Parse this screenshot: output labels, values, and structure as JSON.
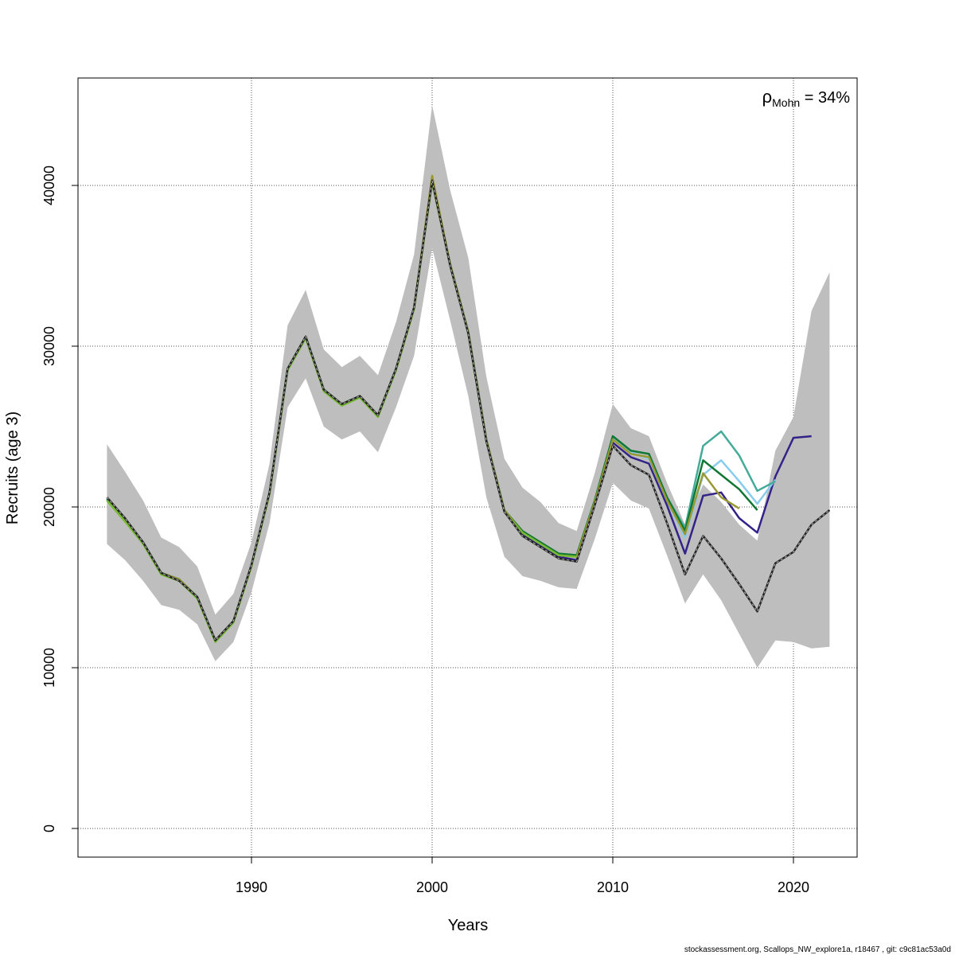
{
  "chart_data": {
    "type": "line",
    "xlabel": "Years",
    "ylabel": "Recruits (age 3)",
    "xlim": [
      1982,
      2022
    ],
    "ylim": [
      0,
      45000
    ],
    "x_ticks": [
      1990,
      2000,
      2010,
      2020
    ],
    "y_ticks": [
      0,
      10000,
      20000,
      30000,
      40000
    ],
    "grid": true,
    "annotation": {
      "symbol": "ρ",
      "subscript": "Mohn",
      "text": " = 34%"
    },
    "confidence_band": {
      "x": [
        1982,
        1983,
        1984,
        1985,
        1986,
        1987,
        1988,
        1989,
        1990,
        1991,
        1992,
        1993,
        1994,
        1995,
        1996,
        1997,
        1998,
        1999,
        2000,
        2001,
        2002,
        2003,
        2004,
        2005,
        2006,
        2007,
        2008,
        2009,
        2010,
        2011,
        2012,
        2013,
        2014,
        2015,
        2016,
        2017,
        2018,
        2019,
        2020,
        2021,
        2022
      ],
      "lower": [
        17700,
        16700,
        15400,
        13900,
        13600,
        12700,
        10400,
        11600,
        14700,
        19000,
        26200,
        28000,
        25000,
        24200,
        24700,
        23400,
        26200,
        29400,
        36100,
        31600,
        26900,
        20600,
        16900,
        15700,
        15400,
        15000,
        14900,
        18000,
        21500,
        20400,
        19900,
        17000,
        14000,
        15800,
        14200,
        12100,
        10000,
        11700,
        11600,
        11200,
        11300
      ],
      "upper": [
        23900,
        22200,
        20400,
        18100,
        17500,
        16300,
        13300,
        14600,
        17800,
        22700,
        31300,
        33500,
        29800,
        28700,
        29400,
        28200,
        31500,
        35700,
        45000,
        39700,
        35500,
        28100,
        23000,
        21200,
        20300,
        19000,
        18500,
        22100,
        26400,
        24900,
        24400,
        21500,
        18900,
        21400,
        20300,
        18900,
        17900,
        23500,
        25600,
        32200,
        34600
      ],
      "color": "#bebebe"
    },
    "series": [
      {
        "values": [
          20600,
          19300,
          17800,
          15900,
          15400,
          14400,
          11700,
          12900,
          16400,
          20900,
          28600,
          30600,
          27300,
          26400,
          26900,
          25700,
          28600,
          32400,
          40300,
          35000,
          30800,
          24100,
          19700,
          18200,
          17500,
          16800,
          16600,
          20100,
          23800,
          22600,
          22000,
          19000,
          15800,
          18200,
          16800,
          15200,
          13500,
          16500,
          17200,
          18900,
          19800
        ],
        "x_start": 1982,
        "color": "#222222",
        "dash": true
      },
      {
        "values": [
          20500,
          19200,
          17800,
          15900,
          15500,
          14400,
          11700,
          12900,
          16400,
          20900,
          28600,
          30600,
          27300,
          26400,
          26900,
          25700,
          28600,
          32400,
          40300,
          35100,
          30800,
          24100,
          19700,
          18300,
          17600,
          16900,
          16700,
          20200,
          24000,
          23100,
          22700,
          20100,
          17100,
          20700,
          20900,
          19300,
          18400,
          21900,
          24300,
          24400
        ],
        "x_start": 1982,
        "color": "#332288"
      },
      {
        "values": [
          20500,
          19200,
          17800,
          15900,
          15500,
          14400,
          11700,
          12900,
          16400,
          20900,
          28600,
          30600,
          27300,
          26400,
          26900,
          25700,
          28600,
          32400,
          40300,
          35100,
          30900,
          24200,
          19800,
          18400,
          17700,
          17000,
          16900,
          20400,
          24300,
          23400,
          23000,
          20400,
          18100,
          22000,
          22900,
          21600,
          20200,
          21700
        ],
        "x_start": 1982,
        "color": "#88ccee"
      },
      {
        "values": [
          20500,
          19200,
          17800,
          15900,
          15500,
          14400,
          11700,
          12900,
          16400,
          20900,
          28600,
          30600,
          27300,
          26400,
          26900,
          25700,
          28600,
          32400,
          40300,
          35100,
          30900,
          24200,
          19800,
          18400,
          17800,
          17100,
          17000,
          20400,
          24400,
          23500,
          23300,
          20600,
          18700,
          23800,
          24700,
          23200,
          21000,
          21600
        ],
        "x_start": 1982,
        "color": "#44aa99"
      },
      {
        "values": [
          20500,
          19200,
          17800,
          15900,
          15500,
          14400,
          11700,
          12900,
          16400,
          20900,
          28600,
          30600,
          27300,
          26400,
          26900,
          25700,
          28600,
          32400,
          40300,
          35100,
          30900,
          24200,
          19800,
          18500,
          17800,
          17100,
          17000,
          20400,
          24400,
          23500,
          23300,
          20600,
          18500,
          22900,
          22000,
          21100,
          19800
        ],
        "x_start": 1982,
        "color": "#117733"
      },
      {
        "values": [
          20400,
          19100,
          17800,
          15900,
          15500,
          14400,
          11700,
          12900,
          16400,
          20900,
          28600,
          30600,
          27300,
          26400,
          26900,
          25700,
          28600,
          32400,
          40600,
          35100,
          30900,
          24200,
          19800,
          18400,
          17700,
          17000,
          16900,
          20300,
          24200,
          23300,
          23100,
          20400,
          18300,
          22100,
          20600,
          19900
        ],
        "x_start": 1982,
        "color": "#999933"
      },
      {
        "values": [
          20400,
          19100,
          17700,
          15800,
          15400,
          14300,
          11600,
          12800,
          16300,
          20800,
          28500,
          30500,
          27200,
          26300,
          26800,
          25600,
          28500,
          32300,
          40200,
          35000,
          30800,
          24100,
          19700,
          18400,
          17700,
          17000,
          16900
        ],
        "x_start": 1982,
        "color": "#77bb33"
      }
    ]
  },
  "footer": "stockassessment.org, Scallops_NW_explore1a, r18467 , git: c9c81ac53a0d"
}
